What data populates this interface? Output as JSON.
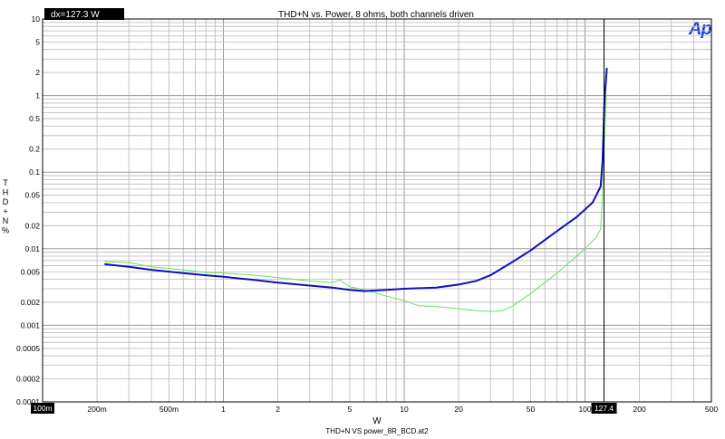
{
  "chart_data": {
    "type": "line",
    "title": "THD+N vs. Power, 8 ohms, both channels driven",
    "xlabel": "W",
    "ylabel": "THD+N %",
    "footer": "THD+N VS power_8R_BCD.at2",
    "logo": "Ap",
    "cursor_readout": "dx=127.3  W",
    "cursor_x": 127.4,
    "cursor_x_label": "127.4",
    "x_scale": "log",
    "y_scale": "log",
    "xlim": [
      0.1,
      500
    ],
    "ylim": [
      0.0001,
      10
    ],
    "grid": true,
    "x_ticks": [
      {
        "v": 0.1,
        "label": "100m",
        "boxed": true
      },
      {
        "v": 0.2,
        "label": "200m"
      },
      {
        "v": 0.5,
        "label": "500m"
      },
      {
        "v": 1,
        "label": "1"
      },
      {
        "v": 2,
        "label": "2"
      },
      {
        "v": 5,
        "label": "5"
      },
      {
        "v": 10,
        "label": "10"
      },
      {
        "v": 20,
        "label": "20"
      },
      {
        "v": 50,
        "label": "50"
      },
      {
        "v": 100,
        "label": "100"
      },
      {
        "v": 200,
        "label": "200"
      },
      {
        "v": 500,
        "label": "500"
      }
    ],
    "y_ticks": [
      {
        "v": 10,
        "label": "10"
      },
      {
        "v": 5,
        "label": "5"
      },
      {
        "v": 2,
        "label": "2"
      },
      {
        "v": 1,
        "label": "1"
      },
      {
        "v": 0.5,
        "label": "0.5"
      },
      {
        "v": 0.2,
        "label": "0.2"
      },
      {
        "v": 0.1,
        "label": "0.1"
      },
      {
        "v": 0.05,
        "label": "0.05"
      },
      {
        "v": 0.02,
        "label": "0.02"
      },
      {
        "v": 0.01,
        "label": "0.01"
      },
      {
        "v": 0.005,
        "label": "0.005"
      },
      {
        "v": 0.002,
        "label": "0.002"
      },
      {
        "v": 0.001,
        "label": "0.001"
      },
      {
        "v": 0.0005,
        "label": "0.0005"
      },
      {
        "v": 0.0002,
        "label": "0.0002"
      },
      {
        "v": 0.0001,
        "label": "0.0001"
      }
    ],
    "series": [
      {
        "color": "#66e060",
        "width": 1,
        "points": [
          [
            0.22,
            0.0068
          ],
          [
            0.3,
            0.0066
          ],
          [
            0.4,
            0.0058
          ],
          [
            0.6,
            0.0053
          ],
          [
            0.8,
            0.0049
          ],
          [
            1,
            0.0048
          ],
          [
            1.5,
            0.0045
          ],
          [
            2,
            0.0042
          ],
          [
            3,
            0.0038
          ],
          [
            4,
            0.0036
          ],
          [
            4.4,
            0.0039
          ],
          [
            5,
            0.0032
          ],
          [
            6,
            0.0029
          ],
          [
            8,
            0.0024
          ],
          [
            10,
            0.0021
          ],
          [
            12,
            0.0018
          ],
          [
            15,
            0.00175
          ],
          [
            20,
            0.00165
          ],
          [
            25,
            0.00155
          ],
          [
            30,
            0.00152
          ],
          [
            35,
            0.00155
          ],
          [
            40,
            0.0018
          ],
          [
            50,
            0.0026
          ],
          [
            70,
            0.0048
          ],
          [
            90,
            0.008
          ],
          [
            100,
            0.01
          ],
          [
            115,
            0.014
          ],
          [
            122,
            0.018
          ],
          [
            125,
            0.05
          ],
          [
            128,
            0.25
          ],
          [
            131,
            1.0
          ]
        ]
      },
      {
        "color": "#1010b8",
        "width": 2,
        "points": [
          [
            0.22,
            0.0063
          ],
          [
            0.3,
            0.0058
          ],
          [
            0.4,
            0.0053
          ],
          [
            0.6,
            0.0048
          ],
          [
            0.8,
            0.0045
          ],
          [
            1,
            0.0043
          ],
          [
            1.5,
            0.0039
          ],
          [
            2,
            0.0036
          ],
          [
            3,
            0.0033
          ],
          [
            4,
            0.0031
          ],
          [
            5,
            0.0029
          ],
          [
            6,
            0.0028
          ],
          [
            8,
            0.0029
          ],
          [
            10,
            0.003
          ],
          [
            15,
            0.0031
          ],
          [
            20,
            0.0034
          ],
          [
            25,
            0.0038
          ],
          [
            30,
            0.0045
          ],
          [
            40,
            0.0068
          ],
          [
            50,
            0.0095
          ],
          [
            70,
            0.017
          ],
          [
            90,
            0.026
          ],
          [
            110,
            0.04
          ],
          [
            120,
            0.06
          ],
          [
            122,
            0.065
          ],
          [
            125,
            0.14
          ],
          [
            128,
            0.8
          ],
          [
            132,
            2.3
          ]
        ]
      }
    ]
  }
}
